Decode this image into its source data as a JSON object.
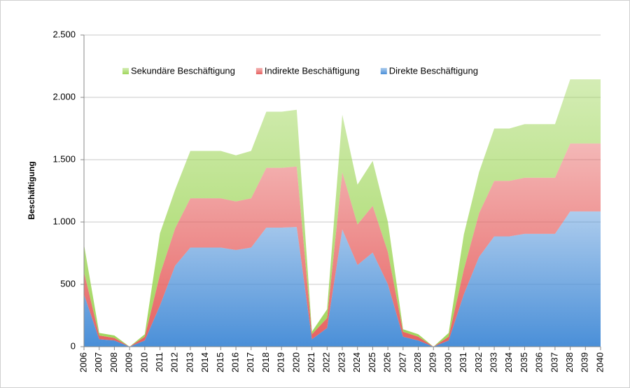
{
  "chart_data": {
    "type": "stacked_area",
    "y_label": "Beschäftigung",
    "categories": [
      "2006",
      "2007",
      "2008",
      "2009",
      "2010",
      "2011",
      "2012",
      "2013",
      "2014",
      "2015",
      "2016",
      "2017",
      "2018",
      "2019",
      "2020",
      "2021",
      "2022",
      "2023",
      "2024",
      "2025",
      "2026",
      "2027",
      "2028",
      "2029",
      "2030",
      "2031",
      "2032",
      "2033",
      "2034",
      "2035",
      "2036",
      "2037",
      "2038",
      "2039",
      "2040"
    ],
    "series": [
      {
        "name": "Direkte Beschäftigung",
        "color": "#4a8fd8",
        "values": [
          420,
          60,
          50,
          0,
          50,
          330,
          650,
          795,
          795,
          795,
          775,
          795,
          955,
          955,
          960,
          60,
          150,
          940,
          655,
          755,
          500,
          80,
          50,
          0,
          50,
          420,
          720,
          885,
          885,
          905,
          905,
          905,
          1085,
          1085,
          1085
        ]
      },
      {
        "name": "Indirekte Beschäftigung",
        "color": "#e6605f",
        "values": [
          180,
          30,
          20,
          0,
          30,
          250,
          300,
          395,
          395,
          395,
          390,
          395,
          480,
          480,
          485,
          40,
          80,
          460,
          325,
          375,
          260,
          40,
          30,
          0,
          30,
          200,
          350,
          445,
          445,
          450,
          450,
          450,
          545,
          545,
          545
        ]
      },
      {
        "name": "Sekundäre Beschäftigung",
        "color": "#9fd65a",
        "values": [
          220,
          20,
          20,
          0,
          20,
          330,
          310,
          380,
          380,
          380,
          370,
          380,
          450,
          450,
          455,
          20,
          70,
          460,
          320,
          360,
          240,
          20,
          20,
          0,
          30,
          280,
          330,
          420,
          420,
          430,
          430,
          430,
          515,
          515,
          515
        ]
      }
    ],
    "ylim": [
      0,
      2500
    ],
    "yticks": [
      0,
      500,
      {
        "value": 1000,
        "label": "1.000"
      },
      {
        "value": 1500,
        "label": "1.500"
      },
      {
        "value": 2000,
        "label": "2.000"
      },
      {
        "value": 2500,
        "label": "2.500"
      }
    ],
    "grid": true,
    "legend": "top"
  }
}
